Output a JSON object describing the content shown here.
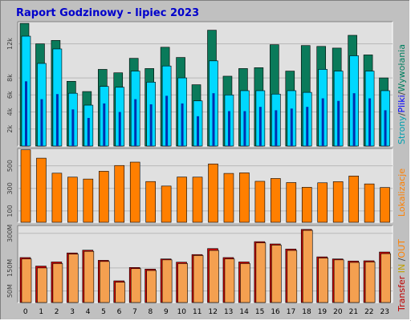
{
  "title": "Raport Godzinowy -  lipiec 2023",
  "colors": {
    "background": "#c0c0c0",
    "plot_background": "#e0e0e0",
    "title_text": "#0000cc",
    "strony_dark": "#0a7a5a",
    "pliki_light": "#00d8ff",
    "wywolania_dark": "#0030b0",
    "lokalizacje": "#ff7f00",
    "transfer_in": "#d00000",
    "transfer_out": "#f4a050",
    "label_strony": "#00a0b0",
    "label_pliki": "#0000ff",
    "label_wywolania": "#008060",
    "label_lokalizacje": "#ff8000",
    "label_transfer": "#c00000",
    "label_in": "#c0a000",
    "label_out": "#ff8000"
  },
  "chart_data": [
    {
      "type": "bar",
      "panel": "top",
      "categories": [
        "0",
        "1",
        "2",
        "3",
        "4",
        "5",
        "6",
        "7",
        "8",
        "9",
        "10",
        "11",
        "12",
        "13",
        "14",
        "15",
        "16",
        "17",
        "18",
        "19",
        "20",
        "21",
        "22",
        "23"
      ],
      "yticks": [
        "2k",
        "4k",
        "6k",
        "8k",
        "12k"
      ],
      "ylim": [
        0,
        14600
      ],
      "series": [
        {
          "name": "Wywołania",
          "values": [
            14400,
            12000,
            12400,
            7600,
            6400,
            9000,
            8600,
            10300,
            9100,
            11600,
            10400,
            7200,
            13600,
            8200,
            9100,
            9200,
            11900,
            8800,
            11800,
            11700,
            11500,
            13000,
            10700,
            8000
          ]
        },
        {
          "name": "Pliki",
          "values": [
            12900,
            9700,
            11400,
            6200,
            4800,
            7000,
            6900,
            8800,
            7500,
            9400,
            8000,
            5300,
            10000,
            6000,
            6500,
            6500,
            6100,
            6500,
            6300,
            9000,
            8800,
            10600,
            8800,
            6500
          ]
        },
        {
          "name": "Strony",
          "values": [
            7600,
            5500,
            6100,
            4300,
            3300,
            5000,
            4000,
            5500,
            4900,
            5900,
            5000,
            3500,
            6200,
            4100,
            4100,
            4600,
            4200,
            4400,
            4600,
            5600,
            5300,
            6200,
            5600,
            4200
          ]
        }
      ],
      "legend": [
        "Strony",
        "Pliki",
        "Wywołania"
      ]
    },
    {
      "type": "bar",
      "panel": "middle",
      "categories": [
        "0",
        "1",
        "2",
        "3",
        "4",
        "5",
        "6",
        "7",
        "8",
        "9",
        "10",
        "11",
        "12",
        "13",
        "14",
        "15",
        "16",
        "17",
        "18",
        "19",
        "20",
        "21",
        "22",
        "23"
      ],
      "yticks": [
        "100",
        "300",
        "500"
      ],
      "ylim": [
        0,
        654
      ],
      "series": [
        {
          "name": "Lokalizacje",
          "values": [
            642,
            568,
            435,
            400,
            383,
            452,
            503,
            533,
            361,
            321,
            401,
            400,
            517,
            433,
            438,
            363,
            388,
            352,
            310,
            350,
            360,
            410,
            340,
            308
          ]
        }
      ],
      "legend": [
        "Lokalizacje"
      ]
    },
    {
      "type": "bar",
      "panel": "bottom",
      "categories": [
        "0",
        "1",
        "2",
        "3",
        "4",
        "5",
        "6",
        "7",
        "8",
        "9",
        "10",
        "11",
        "12",
        "13",
        "14",
        "15",
        "16",
        "17",
        "18",
        "19",
        "20",
        "21",
        "22",
        "23"
      ],
      "yticks": [
        "50M",
        "150M",
        "300M"
      ],
      "ylim": [
        0,
        334
      ],
      "series": [
        {
          "name": "IN",
          "values": [
            195,
            158,
            176,
            215,
            227,
            183,
            94,
            152,
            145,
            189,
            175,
            208,
            234,
            195,
            176,
            264,
            254,
            232,
            317,
            198,
            189,
            180,
            181,
            219
          ]
        },
        {
          "name": "OUT",
          "values": [
            189,
            150,
            169,
            210,
            222,
            178,
            88,
            147,
            139,
            185,
            169,
            204,
            226,
            189,
            169,
            259,
            249,
            226,
            313,
            193,
            185,
            174,
            176,
            212
          ]
        }
      ],
      "legend": [
        "Transfer",
        "IN",
        "OUT"
      ]
    }
  ]
}
